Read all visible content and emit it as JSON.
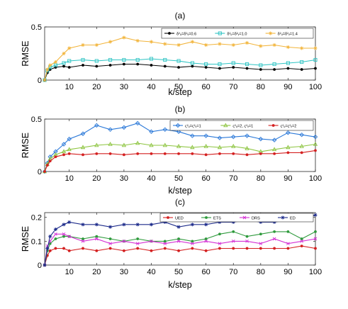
{
  "chart_data": [
    {
      "type": "line",
      "title": "(a)",
      "xlabel": "k/step",
      "ylabel": "RMSE",
      "xlim": [
        1,
        100
      ],
      "ylim": [
        0,
        0.5
      ],
      "xticks": [
        "10",
        "20",
        "30",
        "40",
        "50",
        "60",
        "70",
        "80",
        "90",
        "100"
      ],
      "yticks": [
        "0",
        "0.5"
      ],
      "legend_position": "top-right",
      "legend_orientation": "horizontal",
      "series": [
        {
          "name": "δ²ᵤ=δ²ᵥ=0.6",
          "color": "#000000",
          "marker": "dot",
          "x": [
            1,
            2,
            3,
            5,
            8,
            10,
            15,
            20,
            25,
            30,
            35,
            40,
            45,
            50,
            55,
            60,
            65,
            70,
            75,
            80,
            85,
            90,
            95,
            100
          ],
          "values": [
            0.0,
            0.07,
            0.1,
            0.12,
            0.13,
            0.12,
            0.14,
            0.13,
            0.14,
            0.15,
            0.15,
            0.14,
            0.13,
            0.12,
            0.13,
            0.12,
            0.11,
            0.12,
            0.11,
            0.1,
            0.1,
            0.11,
            0.1,
            0.11
          ]
        },
        {
          "name": "δ²ᵤ=δ²ᵥ=1.0",
          "color": "#2fc4c4",
          "marker": "square",
          "x": [
            1,
            2,
            3,
            5,
            8,
            10,
            15,
            20,
            25,
            30,
            35,
            40,
            45,
            50,
            55,
            60,
            65,
            70,
            75,
            80,
            85,
            90,
            95,
            100
          ],
          "values": [
            0.0,
            0.09,
            0.12,
            0.14,
            0.16,
            0.18,
            0.19,
            0.18,
            0.19,
            0.19,
            0.19,
            0.2,
            0.19,
            0.18,
            0.16,
            0.15,
            0.15,
            0.16,
            0.15,
            0.14,
            0.15,
            0.16,
            0.17,
            0.19
          ]
        },
        {
          "name": "δ²ᵤ=δ²ᵥ=1.4",
          "color": "#f2b43a",
          "marker": "star",
          "x": [
            1,
            2,
            3,
            5,
            8,
            10,
            15,
            20,
            25,
            30,
            35,
            40,
            45,
            50,
            55,
            60,
            65,
            70,
            75,
            80,
            85,
            90,
            95,
            100
          ],
          "values": [
            0.0,
            0.1,
            0.14,
            0.17,
            0.25,
            0.3,
            0.33,
            0.33,
            0.36,
            0.4,
            0.37,
            0.36,
            0.34,
            0.33,
            0.36,
            0.33,
            0.34,
            0.33,
            0.35,
            0.32,
            0.33,
            0.31,
            0.3,
            0.3
          ]
        }
      ]
    },
    {
      "type": "line",
      "title": "(b)",
      "xlabel": "k/step",
      "ylabel": "RMSE",
      "xlim": [
        1,
        100
      ],
      "ylim": [
        0,
        0.5
      ],
      "xticks": [
        "10",
        "20",
        "30",
        "40",
        "50",
        "60",
        "70",
        "80",
        "90",
        "100"
      ],
      "yticks": [
        "0",
        "0.5"
      ],
      "legend_position": "top-right",
      "legend_orientation": "horizontal",
      "series": [
        {
          "name": "ς²ᵤ=ς²ᵥ=1",
          "color": "#2a78d8",
          "marker": "diamond",
          "x": [
            1,
            2,
            3,
            5,
            8,
            10,
            15,
            20,
            25,
            30,
            35,
            40,
            45,
            50,
            55,
            60,
            65,
            70,
            75,
            80,
            85,
            90,
            95,
            100
          ],
          "values": [
            0.0,
            0.08,
            0.14,
            0.19,
            0.26,
            0.31,
            0.36,
            0.44,
            0.4,
            0.42,
            0.46,
            0.38,
            0.4,
            0.38,
            0.34,
            0.34,
            0.32,
            0.33,
            0.34,
            0.31,
            0.3,
            0.37,
            0.35,
            0.33
          ]
        },
        {
          "name": "ς²ᵤ=2, ς²ᵥ=1",
          "color": "#8cc43e",
          "marker": "triangle",
          "x": [
            1,
            2,
            3,
            5,
            8,
            10,
            15,
            20,
            25,
            30,
            35,
            40,
            45,
            50,
            55,
            60,
            65,
            70,
            75,
            80,
            85,
            90,
            95,
            100
          ],
          "values": [
            0.0,
            0.07,
            0.12,
            0.16,
            0.19,
            0.21,
            0.23,
            0.25,
            0.26,
            0.25,
            0.27,
            0.25,
            0.25,
            0.24,
            0.23,
            0.24,
            0.23,
            0.24,
            0.22,
            0.19,
            0.21,
            0.23,
            0.24,
            0.26
          ]
        },
        {
          "name": "ς²ᵤ=ς²ᵥ=2",
          "color": "#d42020",
          "marker": "dot",
          "x": [
            1,
            2,
            3,
            5,
            8,
            10,
            15,
            20,
            25,
            30,
            35,
            40,
            45,
            50,
            55,
            60,
            65,
            70,
            75,
            80,
            85,
            90,
            95,
            100
          ],
          "values": [
            0.0,
            0.06,
            0.1,
            0.14,
            0.16,
            0.17,
            0.16,
            0.17,
            0.17,
            0.16,
            0.17,
            0.17,
            0.17,
            0.17,
            0.17,
            0.16,
            0.17,
            0.17,
            0.16,
            0.17,
            0.17,
            0.18,
            0.18,
            0.2
          ]
        }
      ]
    },
    {
      "type": "line",
      "title": "(c)",
      "xlabel": "k/step",
      "ylabel": "RMSE",
      "xlim": [
        1,
        100
      ],
      "ylim": [
        0,
        0.22
      ],
      "xticks": [
        "10",
        "20",
        "30",
        "40",
        "50",
        "60",
        "70",
        "80",
        "90",
        "100"
      ],
      "yticks": [
        "0",
        "0.1",
        "0.2"
      ],
      "legend_position": "top",
      "legend_orientation": "horizontal",
      "series": [
        {
          "name": "UED",
          "color": "#d42020",
          "marker": "dot",
          "x": [
            1,
            2,
            3,
            5,
            8,
            10,
            15,
            20,
            25,
            30,
            35,
            40,
            45,
            50,
            55,
            60,
            65,
            70,
            75,
            80,
            85,
            90,
            95,
            100
          ],
          "values": [
            0.0,
            0.04,
            0.06,
            0.07,
            0.07,
            0.06,
            0.07,
            0.06,
            0.07,
            0.06,
            0.07,
            0.06,
            0.07,
            0.06,
            0.07,
            0.06,
            0.07,
            0.07,
            0.07,
            0.07,
            0.07,
            0.07,
            0.08,
            0.07
          ]
        },
        {
          "name": "ETS",
          "color": "#2e9a3c",
          "marker": "dot",
          "x": [
            1,
            2,
            3,
            5,
            8,
            10,
            15,
            20,
            25,
            30,
            35,
            40,
            45,
            50,
            55,
            60,
            65,
            70,
            75,
            80,
            85,
            90,
            95,
            100
          ],
          "values": [
            0.0,
            0.06,
            0.09,
            0.11,
            0.12,
            0.12,
            0.11,
            0.12,
            0.11,
            0.1,
            0.11,
            0.1,
            0.1,
            0.11,
            0.1,
            0.11,
            0.13,
            0.14,
            0.12,
            0.13,
            0.14,
            0.14,
            0.11,
            0.14
          ]
        },
        {
          "name": "DRS",
          "color": "#d430d4",
          "marker": "x",
          "x": [
            1,
            2,
            3,
            5,
            8,
            10,
            15,
            20,
            25,
            30,
            35,
            40,
            45,
            50,
            55,
            60,
            65,
            70,
            75,
            80,
            85,
            90,
            95,
            100
          ],
          "values": [
            0.0,
            0.08,
            0.1,
            0.13,
            0.13,
            0.12,
            0.1,
            0.11,
            0.09,
            0.1,
            0.09,
            0.1,
            0.09,
            0.1,
            0.09,
            0.1,
            0.09,
            0.1,
            0.1,
            0.09,
            0.11,
            0.09,
            0.1,
            0.11
          ]
        },
        {
          "name": "ED",
          "color": "#1c2a8a",
          "marker": "star",
          "x": [
            1,
            2,
            3,
            5,
            8,
            10,
            15,
            20,
            25,
            30,
            35,
            40,
            45,
            50,
            55,
            60,
            65,
            70,
            75,
            80,
            85,
            90,
            95,
            100
          ],
          "values": [
            0.0,
            0.07,
            0.12,
            0.15,
            0.17,
            0.18,
            0.17,
            0.17,
            0.16,
            0.17,
            0.17,
            0.17,
            0.18,
            0.16,
            0.17,
            0.17,
            0.18,
            0.18,
            0.19,
            0.18,
            0.18,
            0.19,
            0.19,
            0.21
          ]
        }
      ]
    }
  ]
}
